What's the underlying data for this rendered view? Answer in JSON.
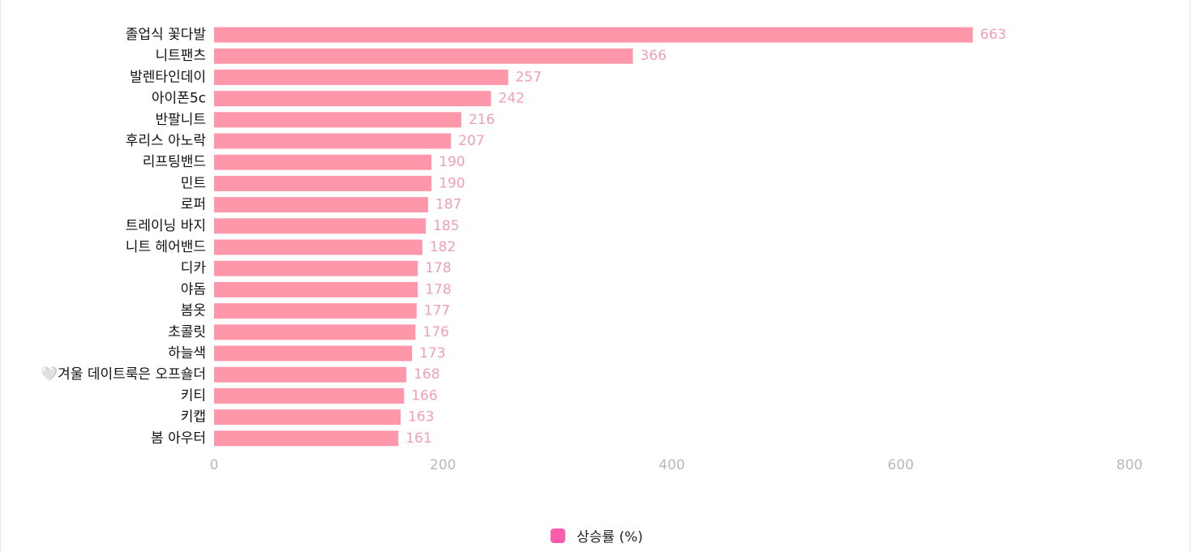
{
  "chart_data": {
    "type": "bar",
    "orientation": "horizontal",
    "categories": [
      "졸업식 꽃다발",
      "니트팬츠",
      "발렌타인데이",
      "아이폰5c",
      "반팔니트",
      "후리스 아노락",
      "리프팅밴드",
      "민트",
      "로퍼",
      "트레이닝 바지",
      "니트 헤어밴드",
      "디카",
      "야돔",
      "봄옷",
      "초콜릿",
      "하늘색",
      "🤍겨울 데이트룩은 오프숄더",
      "키티",
      "키캡",
      "봄 아우터"
    ],
    "series": [
      {
        "name": "상승률 (%)",
        "values": [
          663,
          366,
          257,
          242,
          216,
          207,
          190,
          190,
          187,
          185,
          182,
          178,
          178,
          177,
          176,
          173,
          168,
          166,
          163,
          161
        ]
      }
    ],
    "xlim": [
      0,
      800
    ],
    "xticks": [
      0,
      200,
      400,
      600,
      800
    ],
    "grid": false,
    "legend_position": "bottom",
    "bar_color": "#ff97aa",
    "legend_color": "#ff5aae",
    "value_label_color": "#f0a0b4"
  }
}
